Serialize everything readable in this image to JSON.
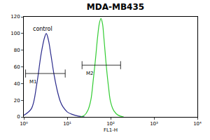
{
  "chart_data": {
    "type": "line",
    "title": "MDA-MB435",
    "x_label": "FL1-H",
    "log": "x",
    "grid": false,
    "xlim": [
      1,
      10000
    ],
    "xticks": [
      {
        "value": 1,
        "label": "10⁰"
      },
      {
        "value": 10,
        "label": "10¹"
      },
      {
        "value": 100,
        "label": "10²"
      },
      {
        "value": 1000,
        "label": "10³"
      },
      {
        "value": 10000,
        "label": "10⁴"
      }
    ],
    "ylim": [
      0,
      120
    ],
    "yticks": [
      0,
      20,
      40,
      60,
      80,
      100,
      120
    ],
    "series": [
      {
        "name": "control",
        "color": "#2b2b8c",
        "x": [
          1.0,
          1.5,
          2,
          2.5,
          3,
          3.3,
          3.7,
          4.2,
          5,
          6,
          7,
          8,
          10,
          13,
          18,
          25
        ],
        "values": [
          2,
          10,
          40,
          75,
          95,
          100,
          92,
          75,
          50,
          30,
          18,
          12,
          6,
          3,
          1,
          0
        ]
      },
      {
        "color": "#33cc33",
        "x": [
          20,
          25,
          30,
          35,
          40,
          45,
          50,
          55,
          60,
          65,
          70,
          80,
          90,
          100,
          120,
          150,
          200
        ],
        "values": [
          0,
          2,
          8,
          20,
          45,
          70,
          95,
          112,
          118,
          112,
          95,
          60,
          35,
          18,
          7,
          2,
          0
        ]
      }
    ],
    "markers": [
      {
        "label": "M1",
        "x": [
          1.1,
          9
        ],
        "y": 52
      },
      {
        "label": "M2",
        "x": [
          22,
          170
        ],
        "y": 62
      }
    ]
  }
}
